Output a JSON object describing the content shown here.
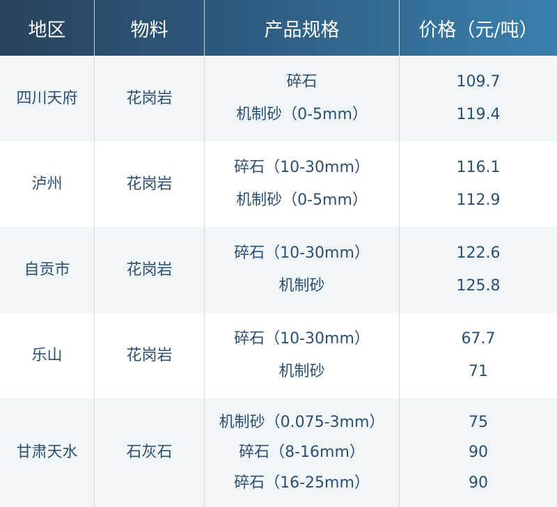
{
  "header": {
    "region": "地区",
    "material": "物料",
    "spec": "产品规格",
    "price": "价格（元/吨）"
  },
  "rows": [
    {
      "region": "四川天府",
      "material": "花岗岩",
      "items": [
        {
          "spec": "碎石",
          "price": "109.7"
        },
        {
          "spec": "机制砂（0-5mm）",
          "price": "119.4"
        }
      ]
    },
    {
      "region": "泸州",
      "material": "花岗岩",
      "items": [
        {
          "spec": "碎石（10-30mm）",
          "price": "116.1"
        },
        {
          "spec": "机制砂（0-5mm）",
          "price": "112.9"
        }
      ]
    },
    {
      "region": "自贡市",
      "material": "花岗岩",
      "items": [
        {
          "spec": "碎石（10-30mm）",
          "price": "122.6"
        },
        {
          "spec": "机制砂",
          "price": "125.8"
        }
      ]
    },
    {
      "region": "乐山",
      "material": "花岗岩",
      "items": [
        {
          "spec": "碎石（10-30mm）",
          "price": "67.7"
        },
        {
          "spec": "机制砂",
          "price": "71"
        }
      ]
    },
    {
      "region": "甘肃天水",
      "material": "石灰石",
      "items": [
        {
          "spec": "机制砂（0.075-3mm）",
          "price": "75"
        },
        {
          "spec": "碎石（8-16mm）",
          "price": "90"
        },
        {
          "spec": "碎石（16-25mm）",
          "price": "90"
        }
      ]
    }
  ]
}
